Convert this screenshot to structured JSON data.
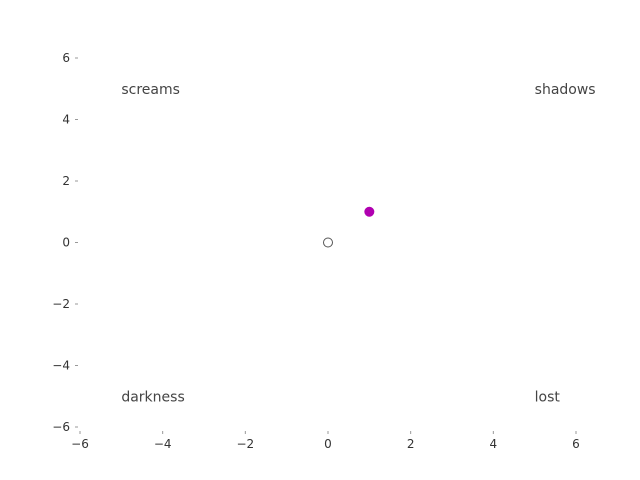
{
  "chart_data": {
    "type": "scatter",
    "title": "",
    "xlabel": "",
    "ylabel": "",
    "xlim": [
      -6,
      6
    ],
    "ylim": [
      -6,
      6
    ],
    "xticks": [
      -6,
      -4,
      -2,
      0,
      2,
      4,
      6
    ],
    "yticks": [
      -6,
      -4,
      -2,
      0,
      2,
      4,
      6
    ],
    "tick_labels_x": [
      "−6",
      "−4",
      "−2",
      "0",
      "2",
      "4",
      "6"
    ],
    "tick_labels_y": [
      "−6",
      "−4",
      "−2",
      "0",
      "2",
      "4",
      "6"
    ],
    "grid": false,
    "points": [
      {
        "x": 0,
        "y": 0,
        "style": "hollow",
        "color": "#555555"
      },
      {
        "x": 1,
        "y": 1,
        "style": "filled",
        "color": "#b000b0"
      }
    ],
    "annotations": [
      {
        "text": "screams",
        "x": -5,
        "y": 5
      },
      {
        "text": "shadows",
        "x": 5,
        "y": 5
      },
      {
        "text": "darkness",
        "x": -5,
        "y": -5
      },
      {
        "text": "lost",
        "x": 5,
        "y": -5
      }
    ]
  },
  "colors": {
    "accent": "#b000b0",
    "tick": "#999999",
    "text": "#444444"
  }
}
